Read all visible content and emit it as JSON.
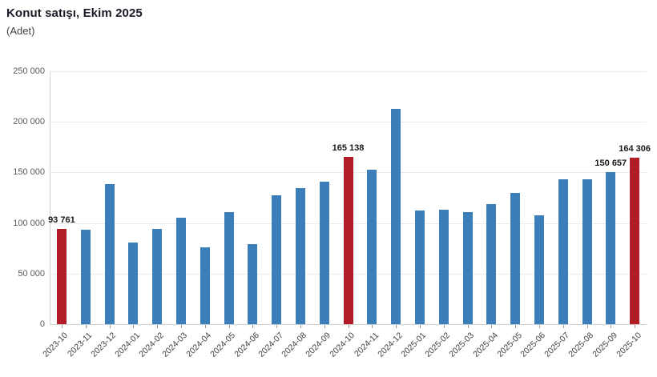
{
  "header": {
    "title": "Konut satışı, Ekim 2025",
    "subtitle": "(Adet)"
  },
  "chart_data": {
    "type": "bar",
    "title": "Konut satışı, Ekim 2025",
    "subtitle": "(Adet)",
    "ylabel": "Adet",
    "xlabel": "",
    "legend_position": "none",
    "grid": true,
    "ylim": [
      0,
      250000
    ],
    "ytick_step": 50000,
    "ytick_labels": [
      "0",
      "50 000",
      "100 000",
      "150 000",
      "200 000",
      "250 000"
    ],
    "categories": [
      "2023-10",
      "2023-11",
      "2023-12",
      "2024-01",
      "2024-02",
      "2024-03",
      "2024-04",
      "2024-05",
      "2024-06",
      "2024-07",
      "2024-08",
      "2024-09",
      "2024-10",
      "2024-11",
      "2024-12",
      "2025-01",
      "2025-02",
      "2025-03",
      "2025-04",
      "2025-05",
      "2025-06",
      "2025-07",
      "2025-08",
      "2025-09",
      "2025-10"
    ],
    "values": [
      93761,
      93178,
      138577,
      80308,
      93902,
      105394,
      75569,
      110588,
      79313,
      127088,
      134155,
      140919,
      165138,
      153014,
      212637,
      112173,
      112818,
      110795,
      118359,
      130025,
      107723,
      142858,
      143319,
      150657,
      164306
    ],
    "highlight_indices": [
      0,
      12,
      24
    ],
    "data_labels": {
      "0": "93 761",
      "12": "165 138",
      "23": "150 657",
      "24": "164 306"
    },
    "colors": {
      "bar": "#3C7EBA",
      "highlight": "#B11C27",
      "grid_line": "#EBEBEB",
      "axis_line": "#CFCFCF",
      "tick": "#999999",
      "title_text": "#1A1A26",
      "subtitle_text": "#3F3F3F",
      "ytick_text": "#595959",
      "xtick_text": "#404040",
      "value_label_text": "#1A1A1A"
    }
  }
}
